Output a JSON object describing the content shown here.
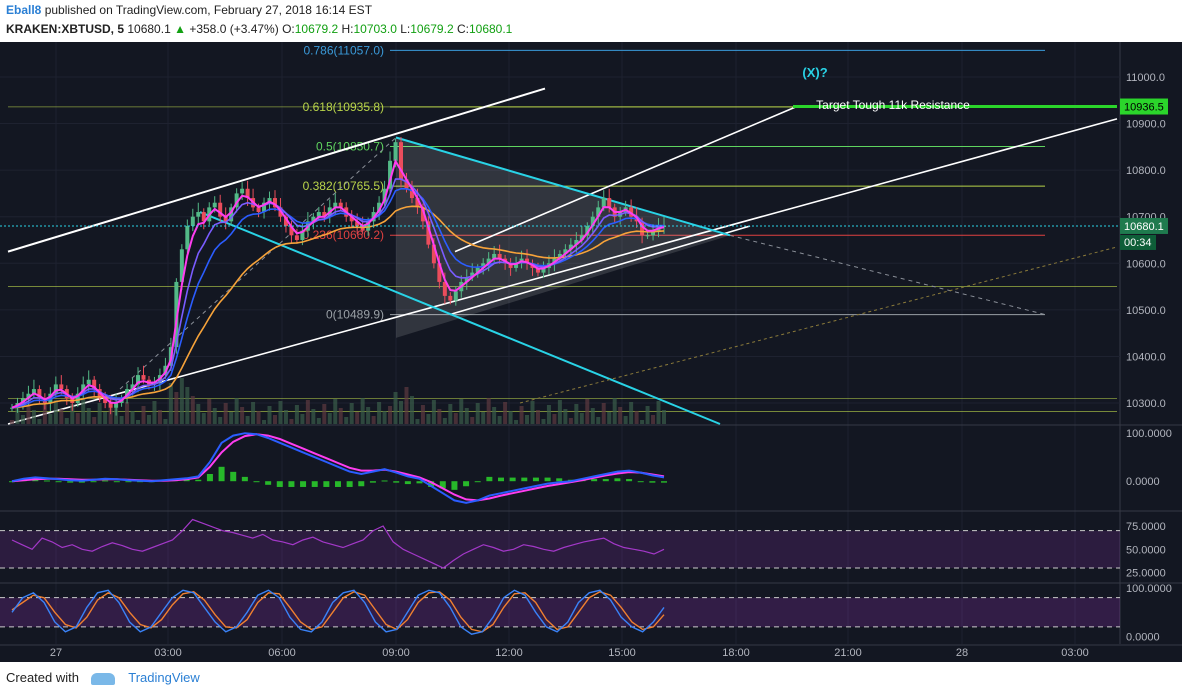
{
  "header": {
    "user": "Eball8",
    "published_text": "published on TradingView.com, February 27, 2018 16:14 EST",
    "symbol": "KRAKEN:XBTUSD, 5",
    "last": "10680.1",
    "arrow": "▲",
    "change": "+358.0 (+3.47%)",
    "o_label": "O:",
    "o_value": "10679.2",
    "h_label": "H:",
    "h_value": "10703.0",
    "l_label": "L:",
    "l_value": "10679.2",
    "c_label": "C:",
    "c_value": "10680.1"
  },
  "footer": {
    "created_with": "Created with",
    "brand": "TradingView"
  },
  "colors": {
    "background": "#131722",
    "candle_up": "#53b987",
    "candle_down": "#eb4d5c",
    "ema_fast": "#ff3df0",
    "ema_mid": "#7a5cff",
    "ema_slow": "#2b5dff",
    "ma_orange": "#f7a33a",
    "channel": "#ffffff",
    "cyan_line": "#29d3e6",
    "fib_line": "#b9d44a",
    "price_tag": "#2bd52b",
    "rsi": "#a338c8",
    "stoch_k": "#3a82f7",
    "stoch_d": "#f08030"
  },
  "chart_data": {
    "type": "candlestick",
    "symbol": "KRAKEN:XBTUSD",
    "interval": "5",
    "x_ticks": [
      "27",
      "03:00",
      "06:00",
      "09:00",
      "12:00",
      "15:00",
      "18:00",
      "21:00",
      "28",
      "03:00"
    ],
    "price_axis": {
      "ticks": [
        "11000.0",
        "10900.0",
        "10800.0",
        "10700.0",
        "10600.0",
        "10500.0",
        "10400.0",
        "10300.0"
      ],
      "tick_values": [
        11000,
        10900,
        10800,
        10700,
        10600,
        10500,
        10400,
        10300
      ],
      "ylim": [
        10255,
        11075
      ],
      "current_price": "10680.1",
      "countdown": "00:34",
      "target_price": "10936.5"
    },
    "candles_close": [
      10290,
      10300,
      10310,
      10320,
      10330,
      10310,
      10300,
      10320,
      10340,
      10330,
      10310,
      10300,
      10320,
      10340,
      10350,
      10330,
      10310,
      10300,
      10290,
      10300,
      10310,
      10330,
      10340,
      10360,
      10350,
      10340,
      10345,
      10360,
      10380,
      10420,
      10560,
      10630,
      10680,
      10700,
      10710,
      10690,
      10720,
      10730,
      10700,
      10690,
      10720,
      10750,
      10760,
      10740,
      10720,
      10710,
      10730,
      10740,
      10720,
      10700,
      10680,
      10660,
      10650,
      10670,
      10690,
      10700,
      10710,
      10700,
      10720,
      10730,
      10720,
      10700,
      10690,
      10680,
      10670,
      10690,
      10710,
      10730,
      10760,
      10820,
      10860,
      10780,
      10760,
      10740,
      10720,
      10690,
      10640,
      10600,
      10560,
      10530,
      10520,
      10540,
      10560,
      10570,
      10580,
      10590,
      10600,
      10610,
      10620,
      10610,
      10600,
      10590,
      10600,
      10610,
      10600,
      10590,
      10580,
      10590,
      10600,
      10610,
      10620,
      10630,
      10640,
      10650,
      10660,
      10680,
      10700,
      10720,
      10740,
      10720,
      10700,
      10710,
      10720,
      10700,
      10690,
      10660,
      10660,
      10670,
      10680,
      10680
    ],
    "fib_levels": [
      {
        "label": "0.786(11057.0)",
        "level": 0.786,
        "price": 11057.0
      },
      {
        "label": "0.618(10935.8)",
        "level": 0.618,
        "price": 10935.8
      },
      {
        "label": "0.5(10850.7)",
        "level": 0.5,
        "price": 10850.7
      },
      {
        "label": "0.382(10765.5)",
        "level": 0.382,
        "price": 10765.5
      },
      {
        "label": "0.236(10660.2)",
        "level": 0.236,
        "price": 10660.2
      },
      {
        "label": "0(10489.9)",
        "level": 0,
        "price": 10489.9
      }
    ],
    "annotations": [
      "(X)?",
      "Target Tough 11k Resistance"
    ],
    "macd": {
      "ticks": [
        "100.0000",
        "0.0000"
      ],
      "ylim": [
        -60,
        115
      ],
      "macd_line": [
        0,
        5,
        8,
        6,
        4,
        2,
        1,
        3,
        5,
        4,
        2,
        1,
        0,
        2,
        4,
        6,
        10,
        40,
        80,
        95,
        100,
        98,
        90,
        80,
        70,
        60,
        50,
        40,
        30,
        20,
        15,
        20,
        25,
        18,
        10,
        5,
        -10,
        -25,
        -40,
        -45,
        -40,
        -30,
        -25,
        -20,
        -15,
        -10,
        -5,
        -2,
        0,
        5,
        10,
        15,
        20,
        22,
        18,
        12,
        8
      ],
      "signal_line": [
        0,
        2,
        4,
        5,
        5,
        4,
        3,
        3,
        4,
        4,
        3,
        2,
        1,
        1,
        2,
        4,
        8,
        30,
        60,
        82,
        94,
        98,
        95,
        88,
        78,
        68,
        58,
        48,
        38,
        28,
        22,
        22,
        24,
        20,
        14,
        8,
        -2,
        -15,
        -28,
        -38,
        -40,
        -36,
        -30,
        -25,
        -20,
        -15,
        -10,
        -6,
        -2,
        2,
        7,
        12,
        16,
        19,
        18,
        14,
        10
      ]
    },
    "rsi": {
      "ticks": [
        "75.0000",
        "50.0000",
        "25.0000"
      ],
      "ylim": [
        15,
        90
      ],
      "upper_band": 70,
      "lower_band": 30,
      "values": [
        60,
        55,
        50,
        62,
        58,
        52,
        55,
        50,
        48,
        53,
        57,
        54,
        50,
        48,
        52,
        56,
        60,
        70,
        82,
        78,
        74,
        70,
        68,
        65,
        62,
        66,
        60,
        58,
        55,
        60,
        63,
        58,
        55,
        52,
        56,
        60,
        70,
        75,
        58,
        50,
        45,
        40,
        35,
        30,
        38,
        45,
        50,
        55,
        52,
        48,
        50,
        55,
        53,
        50,
        48,
        52,
        55,
        58,
        60,
        62,
        56,
        52,
        50,
        48,
        45,
        50
      ]
    },
    "stoch": {
      "ticks": [
        "100.0000",
        "0.0000"
      ],
      "ylim": [
        -15,
        108
      ],
      "upper_band": 80,
      "lower_band": 20,
      "k": [
        50,
        80,
        90,
        70,
        30,
        10,
        20,
        60,
        90,
        95,
        70,
        30,
        10,
        20,
        50,
        80,
        95,
        90,
        60,
        30,
        10,
        20,
        50,
        85,
        95,
        80,
        40,
        15,
        10,
        30,
        70,
        90,
        95,
        70,
        30,
        10,
        15,
        50,
        85,
        95,
        90,
        60,
        20,
        5,
        10,
        40,
        80,
        95,
        85,
        50,
        20,
        10,
        30,
        70,
        90,
        95,
        75,
        40,
        20,
        10,
        30,
        60
      ],
      "d": [
        55,
        70,
        85,
        80,
        50,
        25,
        18,
        40,
        75,
        90,
        80,
        50,
        25,
        18,
        35,
        65,
        88,
        92,
        75,
        45,
        20,
        18,
        35,
        70,
        90,
        88,
        60,
        30,
        15,
        20,
        50,
        80,
        92,
        85,
        55,
        25,
        15,
        35,
        70,
        90,
        92,
        75,
        40,
        15,
        10,
        25,
        60,
        88,
        90,
        70,
        35,
        15,
        20,
        50,
        80,
        92,
        85,
        60,
        30,
        15,
        20,
        45
      ]
    }
  }
}
